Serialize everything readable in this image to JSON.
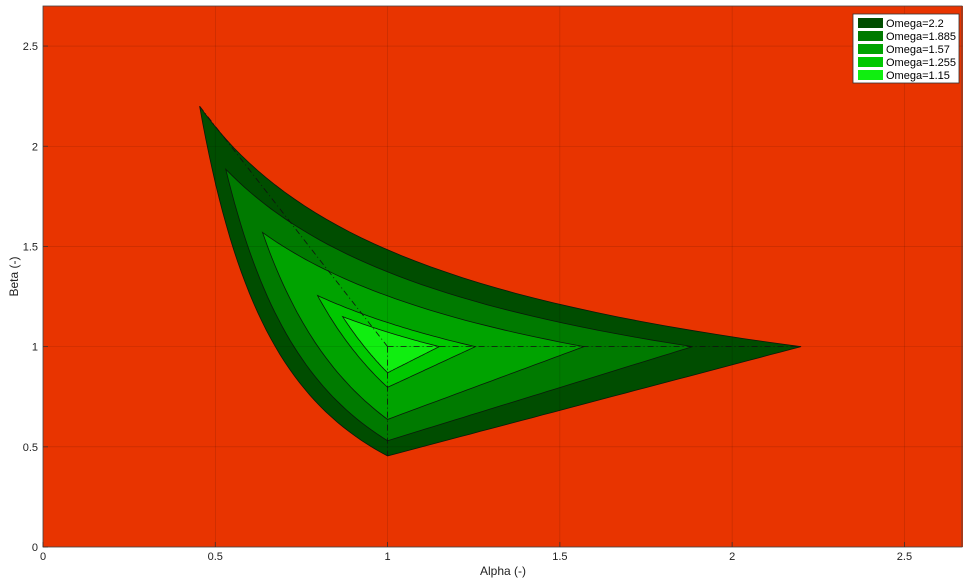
{
  "chart_data": {
    "type": "area",
    "title": "",
    "xlabel": "Alpha (-)",
    "ylabel": "Beta (-)",
    "xlim": [
      0,
      2.67
    ],
    "ylim": [
      0,
      2.7
    ],
    "xticks": [
      0,
      0.5,
      1,
      1.5,
      2,
      2.5
    ],
    "xtick_labels": [
      "0",
      "0.5",
      "1",
      "1.5",
      "2",
      "2.5"
    ],
    "yticks": [
      0,
      0.5,
      1,
      1.5,
      2,
      2.5
    ],
    "ytick_labels": [
      "0",
      "0.5",
      "1",
      "1.5",
      "2",
      "2.5"
    ],
    "grid": true,
    "legend_position": "top-right",
    "background_color": "#e83400",
    "series": [
      {
        "name": "Omega=2.2",
        "omega": 2.2,
        "color": "#004d00"
      },
      {
        "name": "Omega=1.885",
        "omega": 1.885,
        "color": "#007a00"
      },
      {
        "name": "Omega=1.57",
        "omega": 1.57,
        "color": "#00a300"
      },
      {
        "name": "Omega=1.255",
        "omega": 1.255,
        "color": "#00c800"
      },
      {
        "name": "Omega=1.15",
        "omega": 1.15,
        "color": "#10ee10"
      }
    ],
    "region_vertices_formula": "apexes at (1/Omega, Omega), (Omega, 1), (1, 1/Omega)"
  }
}
